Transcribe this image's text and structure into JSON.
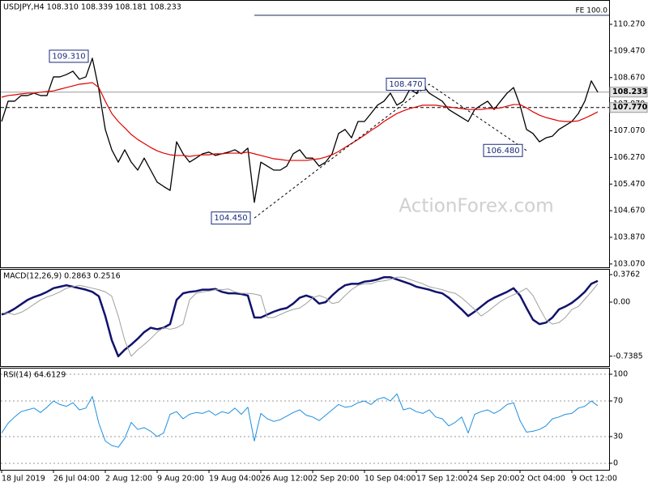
{
  "chart_data": [
    {
      "type": "line",
      "title": "USDJPY,H4  108.310 108.339 108.181 108.233",
      "watermark": "ActionForex.com",
      "categories": [
        "18 Jul 2019",
        null,
        null,
        null,
        null,
        null,
        null,
        null,
        "26 Jul 04:00",
        null,
        null,
        null,
        null,
        null,
        null,
        null,
        "2 Aug 12:00",
        null,
        null,
        null,
        null,
        null,
        null,
        null,
        "9 Aug 20:00",
        null,
        null,
        null,
        null,
        null,
        null,
        null,
        "19 Aug 04:00",
        null,
        null,
        null,
        null,
        null,
        null,
        null,
        "26 Aug 12:00",
        null,
        null,
        null,
        null,
        null,
        null,
        null,
        "2 Sep 20:00",
        null,
        null,
        null,
        null,
        null,
        null,
        null,
        "10 Sep 04:00",
        null,
        null,
        null,
        null,
        null,
        null,
        null,
        "17 Sep 12:00",
        null,
        null,
        null,
        null,
        null,
        null,
        null,
        "24 Sep 20:00",
        null,
        null,
        null,
        null,
        null,
        null,
        null,
        "2 Oct 04:00",
        null,
        null,
        null,
        null,
        null,
        null,
        null,
        "9 Oct 12:00",
        null,
        null,
        null,
        null
      ],
      "series": [
        {
          "color": "#000000",
          "values": [
            107.35,
            107.96,
            107.96,
            108.13,
            108.13,
            108.2,
            108.13,
            108.13,
            108.69,
            108.69,
            108.76,
            108.86,
            108.62,
            108.69,
            109.25,
            108.32,
            107.11,
            106.5,
            106.13,
            106.5,
            106.13,
            105.89,
            106.25,
            105.89,
            105.53,
            105.4,
            105.28,
            106.74,
            106.38,
            106.13,
            106.25,
            106.38,
            106.43,
            106.33,
            106.38,
            106.43,
            106.5,
            106.38,
            106.55,
            104.92,
            106.13,
            106.01,
            105.89,
            105.89,
            106.01,
            106.38,
            106.5,
            106.25,
            106.25,
            106.01,
            106.13,
            106.38,
            106.99,
            107.11,
            106.86,
            107.35,
            107.35,
            107.59,
            107.84,
            107.96,
            108.2,
            107.84,
            107.96,
            108.32,
            108.2,
            108.44,
            108.2,
            108.08,
            107.96,
            107.71,
            107.59,
            107.47,
            107.35,
            107.71,
            107.84,
            107.96,
            107.71,
            107.96,
            108.2,
            108.37,
            107.84,
            107.11,
            106.99,
            106.74,
            106.86,
            106.91,
            107.11,
            107.23,
            107.35,
            107.59,
            107.96,
            108.57,
            108.23
          ]
        },
        {
          "color": "#e00000",
          "values": [
            108.08,
            108.13,
            108.15,
            108.18,
            108.2,
            108.2,
            108.23,
            108.25,
            108.27,
            108.32,
            108.37,
            108.42,
            108.47,
            108.49,
            108.52,
            108.37,
            107.96,
            107.59,
            107.35,
            107.16,
            106.96,
            106.81,
            106.69,
            106.57,
            106.47,
            106.4,
            106.35,
            106.33,
            106.33,
            106.3,
            106.33,
            106.35,
            106.35,
            106.38,
            106.38,
            106.4,
            106.4,
            106.4,
            106.43,
            106.38,
            106.33,
            106.28,
            106.23,
            106.21,
            106.18,
            106.18,
            106.18,
            106.18,
            106.21,
            106.23,
            106.28,
            106.35,
            106.45,
            106.57,
            106.69,
            106.81,
            106.94,
            107.08,
            107.2,
            107.35,
            107.47,
            107.59,
            107.67,
            107.74,
            107.79,
            107.84,
            107.84,
            107.84,
            107.81,
            107.79,
            107.76,
            107.74,
            107.71,
            107.71,
            107.71,
            107.74,
            107.74,
            107.76,
            107.81,
            107.86,
            107.86,
            107.76,
            107.64,
            107.54,
            107.47,
            107.42,
            107.37,
            107.35,
            107.35,
            107.37,
            107.45,
            107.54,
            107.64
          ]
        }
      ],
      "ylim": [
        102.97,
        111.0
      ],
      "yticks": [
        {
          "value": 110.27,
          "label": "110.270"
        },
        {
          "value": 109.47,
          "label": "109.470"
        },
        {
          "value": 108.67,
          "label": "108.670"
        },
        {
          "value": 107.87,
          "label": "107.870"
        },
        {
          "value": 107.07,
          "label": "107.070"
        },
        {
          "value": 106.27,
          "label": "106.270"
        },
        {
          "value": 105.47,
          "label": "105.470"
        },
        {
          "value": 104.67,
          "label": "104.670"
        },
        {
          "value": 103.87,
          "label": "103.870"
        },
        {
          "value": 103.07,
          "label": "103.070"
        }
      ],
      "levels": [
        {
          "value": 108.233,
          "label": "108.233",
          "style": "solid"
        },
        {
          "value": 107.77,
          "label": "107.770",
          "style": "dashed"
        }
      ],
      "fe_line": {
        "label": "FE 100.0",
        "value": 110.54
      },
      "annotations": [
        {
          "value": 109.31,
          "label": "109.310",
          "at": 14
        },
        {
          "value": 104.45,
          "label": "104.450",
          "at": 39
        },
        {
          "value": 108.47,
          "label": "108.470",
          "at": 66
        },
        {
          "value": 106.48,
          "label": "106.480",
          "at": 81
        }
      ]
    },
    {
      "type": "line",
      "title": "MACD(12,26,9) 0.2863 0.2516",
      "series": [
        {
          "color": "#12126e",
          "width": 2.5,
          "values": [
            -0.17,
            -0.14,
            -0.09,
            -0.03,
            0.03,
            0.07,
            0.1,
            0.14,
            0.19,
            0.21,
            0.23,
            0.21,
            0.19,
            0.17,
            0.14,
            0.08,
            -0.19,
            -0.52,
            -0.74,
            -0.65,
            -0.58,
            -0.5,
            -0.41,
            -0.35,
            -0.37,
            -0.35,
            -0.3,
            0.03,
            0.12,
            0.14,
            0.15,
            0.17,
            0.17,
            0.18,
            0.14,
            0.12,
            0.12,
            0.11,
            0.09,
            -0.21,
            -0.21,
            -0.17,
            -0.13,
            -0.1,
            -0.08,
            -0.02,
            0.06,
            0.09,
            0.06,
            -0.02,
            0.0,
            0.09,
            0.17,
            0.23,
            0.25,
            0.25,
            0.28,
            0.29,
            0.31,
            0.34,
            0.34,
            0.31,
            0.28,
            0.25,
            0.21,
            0.19,
            0.17,
            0.14,
            0.12,
            0.06,
            -0.02,
            -0.1,
            -0.19,
            -0.13,
            -0.06,
            0.01,
            0.06,
            0.1,
            0.14,
            0.19,
            0.09,
            -0.08,
            -0.24,
            -0.3,
            -0.28,
            -0.21,
            -0.1,
            -0.06,
            -0.01,
            0.06,
            0.14,
            0.25,
            0.29
          ]
        },
        {
          "color": "#a0a0a0",
          "width": 1,
          "values": [
            -0.15,
            -0.15,
            -0.17,
            -0.14,
            -0.09,
            -0.03,
            0.03,
            0.07,
            0.1,
            0.14,
            0.19,
            0.21,
            0.23,
            0.21,
            0.19,
            0.17,
            0.14,
            0.08,
            -0.19,
            -0.52,
            -0.74,
            -0.65,
            -0.58,
            -0.5,
            -0.41,
            -0.35,
            -0.37,
            -0.35,
            -0.3,
            0.03,
            0.12,
            0.14,
            0.15,
            0.17,
            0.17,
            0.18,
            0.14,
            0.12,
            0.12,
            0.11,
            0.09,
            -0.21,
            -0.21,
            -0.17,
            -0.13,
            -0.1,
            -0.08,
            -0.02,
            0.06,
            0.09,
            0.06,
            -0.02,
            0.0,
            0.09,
            0.17,
            0.23,
            0.25,
            0.25,
            0.28,
            0.29,
            0.31,
            0.34,
            0.34,
            0.31,
            0.28,
            0.25,
            0.21,
            0.19,
            0.17,
            0.14,
            0.12,
            0.06,
            -0.02,
            -0.1,
            -0.19,
            -0.13,
            -0.06,
            0.01,
            0.06,
            0.1,
            0.14,
            0.19,
            0.09,
            -0.08,
            -0.24,
            -0.3,
            -0.28,
            -0.21,
            -0.1,
            -0.06,
            0.04,
            0.14,
            0.25
          ]
        }
      ],
      "ylim": [
        -0.874,
        0.4535
      ],
      "yticks": [
        0.3762,
        {
          "value": 0,
          "label": "0.00"
        },
        -0.7385
      ]
    },
    {
      "type": "line",
      "title": "RSI(14) 64.6129",
      "series": [
        {
          "color": "#1e8fe0",
          "width": 1,
          "values": [
            34,
            45,
            52,
            58,
            60,
            62,
            57,
            63,
            70,
            66,
            64,
            68,
            60,
            62,
            75,
            45,
            25,
            20,
            18,
            28,
            46,
            38,
            40,
            36,
            30,
            34,
            55,
            58,
            50,
            55,
            57,
            56,
            59,
            54,
            58,
            56,
            62,
            55,
            63,
            25,
            56,
            50,
            47,
            49,
            53,
            57,
            60,
            54,
            52,
            48,
            54,
            60,
            66,
            63,
            64,
            68,
            70,
            66,
            72,
            74,
            70,
            78,
            60,
            62,
            58,
            56,
            60,
            52,
            50,
            42,
            46,
            52,
            34,
            55,
            58,
            60,
            56,
            60,
            66,
            68,
            48,
            35,
            36,
            38,
            42,
            50,
            52,
            55,
            56,
            62,
            64,
            70,
            64.6
          ]
        }
      ],
      "ylim": [
        -7.3,
        107.3
      ],
      "yticks": [
        100,
        70,
        30,
        0
      ],
      "dotted_grid": true
    }
  ]
}
